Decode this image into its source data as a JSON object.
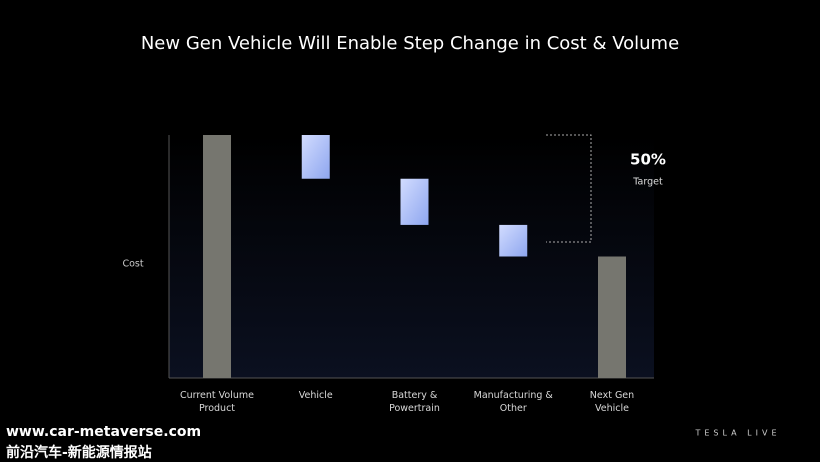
{
  "chart_data": {
    "type": "waterfall",
    "title": "New Gen Vehicle Will Enable Step Change in Cost & Volume",
    "y_label": "Cost",
    "categories": [
      "Current Volume\nProduct",
      "Vehicle",
      "Battery &\nPowertrain",
      "Manufacturing &\nOther",
      "Next Gen\nVehicle"
    ],
    "values": [
      100,
      -18,
      -19,
      -13,
      50
    ],
    "kinds": [
      "total",
      "delta",
      "delta",
      "delta",
      "total"
    ],
    "total_color": "#76766f",
    "delta_color": "#a9bcf5",
    "ylim": [
      0,
      100
    ],
    "annotation": {
      "value_text": "50%",
      "text": "Target"
    }
  },
  "watermark": {
    "site": "www.car-metaverse.com",
    "name": "前沿汽车-新能源情报站",
    "logo": "TESLA LIVE"
  }
}
